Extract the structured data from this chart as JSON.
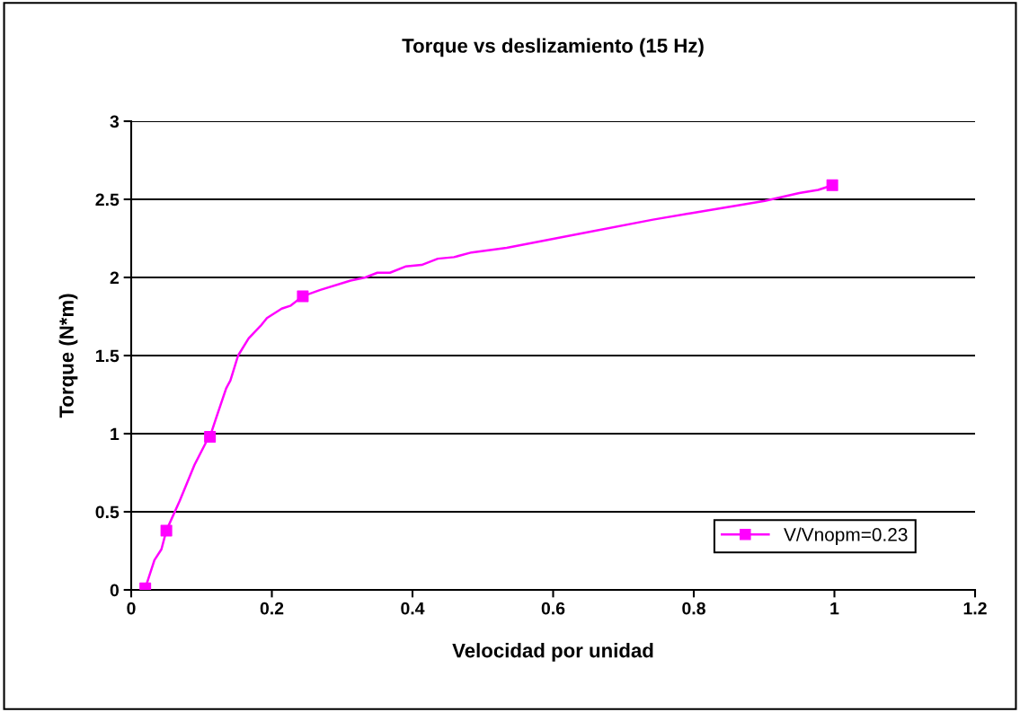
{
  "chart_data": {
    "type": "line",
    "title": "Torque vs deslizamiento (15 Hz)",
    "xlabel": "Velocidad por unidad",
    "ylabel": "Torque (N*m)",
    "xlim": [
      0,
      1.2
    ],
    "xticks": [
      0,
      0.2,
      0.4,
      0.6,
      0.8,
      1,
      1.2
    ],
    "ylim": [
      0,
      3
    ],
    "yticks": [
      0,
      0.5,
      1,
      1.5,
      2,
      2.5,
      3
    ],
    "grid": "y",
    "legend": "bottom right",
    "series": [
      {
        "name": "V/Vnopm=0.23",
        "color": "#ff00ff",
        "x": [
          0.02,
          0.033,
          0.043,
          0.05,
          0.069,
          0.09,
          0.107,
          0.112,
          0.12,
          0.135,
          0.141,
          0.152,
          0.167,
          0.184,
          0.193,
          0.214,
          0.227,
          0.244,
          0.269,
          0.312,
          0.333,
          0.35,
          0.368,
          0.39,
          0.413,
          0.436,
          0.459,
          0.484,
          0.534,
          0.742,
          0.794,
          0.901,
          0.95,
          0.977,
          0.997
        ],
        "values": [
          0.01,
          0.19,
          0.26,
          0.38,
          0.57,
          0.8,
          0.95,
          0.98,
          1.09,
          1.29,
          1.34,
          1.5,
          1.61,
          1.69,
          1.74,
          1.8,
          1.82,
          1.88,
          1.92,
          1.98,
          2.0,
          2.03,
          2.03,
          2.07,
          2.08,
          2.12,
          2.13,
          2.16,
          2.19,
          2.37,
          2.41,
          2.49,
          2.54,
          2.56,
          2.59
        ]
      },
      {
        "type": "scatter",
        "color": "#ff00ff",
        "marker": "square",
        "x": [
          0.02,
          0.05,
          0.112,
          0.244,
          0.997
        ],
        "values": [
          0.01,
          0.38,
          0.98,
          1.88,
          2.59
        ]
      }
    ]
  }
}
